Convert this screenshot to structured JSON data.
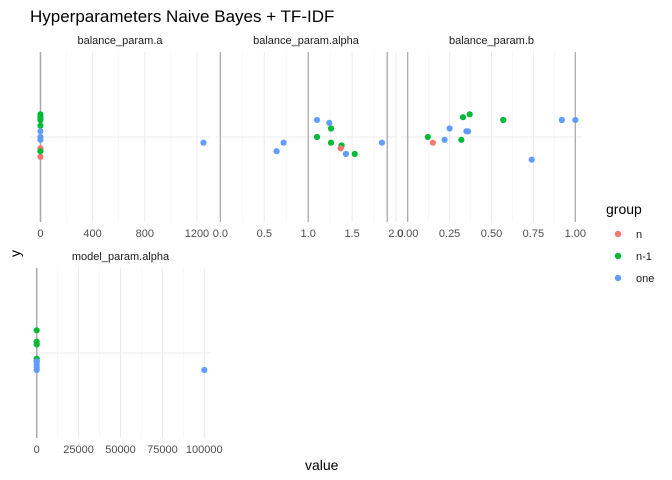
{
  "chart_data": {
    "type": "scatter",
    "title": "Hyperparameters Naive Bayes + TF-IDF",
    "xlabel": "value",
    "ylabel": "y",
    "grid": true,
    "legend": {
      "title": "group",
      "placement": "right",
      "entries": [
        {
          "name": "n",
          "color": "#F8766D"
        },
        {
          "name": "n-1",
          "color": "#00BA38"
        },
        {
          "name": "one",
          "color": "#619CFF"
        }
      ]
    },
    "y_range": [
      -0.3,
      0.3
    ],
    "facets": [
      {
        "name": "balance_param.a",
        "xlim": [
          -80,
          1300
        ],
        "x_ticks": [
          0,
          400,
          800,
          1200
        ],
        "x_tick_labels": [
          "0",
          "400",
          "800",
          "1200"
        ],
        "points": [
          {
            "group": "n",
            "x": 0,
            "y": -0.07
          },
          {
            "group": "n",
            "x": 0,
            "y": -0.04
          },
          {
            "group": "n-1",
            "x": 0,
            "y": 0.08
          },
          {
            "group": "n-1",
            "x": 0,
            "y": 0.07
          },
          {
            "group": "n-1",
            "x": 0,
            "y": 0.06
          },
          {
            "group": "n-1",
            "x": 0,
            "y": 0.04
          },
          {
            "group": "n-1",
            "x": 0,
            "y": -0.05
          },
          {
            "group": "one",
            "x": 0,
            "y": 0.02
          },
          {
            "group": "one",
            "x": 0,
            "y": 0.0
          },
          {
            "group": "one",
            "x": 0,
            "y": -0.01
          },
          {
            "group": "one",
            "x": 1250,
            "y": -0.02
          }
        ]
      },
      {
        "name": "balance_param.alpha",
        "xlim": [
          -0.05,
          2.0
        ],
        "x_ticks": [
          0.0,
          0.5,
          1.0,
          1.5,
          2.0
        ],
        "x_tick_labels": [
          "0.0",
          "0.5",
          "1.0",
          "1.5",
          "2.0"
        ],
        "points": [
          {
            "group": "one",
            "x": 0.64,
            "y": -0.05
          },
          {
            "group": "one",
            "x": 0.72,
            "y": -0.02
          },
          {
            "group": "one",
            "x": 1.1,
            "y": 0.06
          },
          {
            "group": "one",
            "x": 1.24,
            "y": 0.05
          },
          {
            "group": "one",
            "x": 1.37,
            "y": -0.04
          },
          {
            "group": "one",
            "x": 1.43,
            "y": -0.06
          },
          {
            "group": "one",
            "x": 1.84,
            "y": -0.02
          },
          {
            "group": "n-1",
            "x": 1.1,
            "y": 0.0
          },
          {
            "group": "n-1",
            "x": 1.26,
            "y": 0.03
          },
          {
            "group": "n-1",
            "x": 1.26,
            "y": -0.02
          },
          {
            "group": "n-1",
            "x": 1.38,
            "y": -0.03
          },
          {
            "group": "n-1",
            "x": 1.53,
            "y": -0.06
          },
          {
            "group": "n",
            "x": 1.37,
            "y": -0.04
          }
        ]
      },
      {
        "name": "balance_param.b",
        "xlim": [
          -0.04,
          1.04
        ],
        "x_ticks": [
          0.0,
          0.25,
          0.5,
          0.75,
          1.0
        ],
        "x_tick_labels": [
          "0.00",
          "0.25",
          "0.50",
          "0.75",
          "1.00"
        ],
        "points": [
          {
            "group": "n",
            "x": 0.15,
            "y": -0.02
          },
          {
            "group": "n-1",
            "x": 0.12,
            "y": 0.0
          },
          {
            "group": "n-1",
            "x": 0.32,
            "y": -0.01
          },
          {
            "group": "n-1",
            "x": 0.33,
            "y": 0.07
          },
          {
            "group": "n-1",
            "x": 0.37,
            "y": 0.08
          },
          {
            "group": "n-1",
            "x": 0.57,
            "y": 0.06
          },
          {
            "group": "one",
            "x": 0.22,
            "y": -0.01
          },
          {
            "group": "one",
            "x": 0.25,
            "y": 0.03
          },
          {
            "group": "one",
            "x": 0.35,
            "y": 0.02
          },
          {
            "group": "one",
            "x": 0.36,
            "y": 0.02
          },
          {
            "group": "one",
            "x": 0.74,
            "y": -0.08
          },
          {
            "group": "one",
            "x": 0.92,
            "y": 0.06
          },
          {
            "group": "one",
            "x": 1.0,
            "y": 0.06
          }
        ]
      },
      {
        "name": "model_param.alpha",
        "xlim": [
          -4000,
          104000
        ],
        "x_ticks": [
          0,
          25000,
          50000,
          75000,
          100000
        ],
        "x_tick_labels": [
          "0",
          "25000",
          "50000",
          "75000",
          "100000"
        ],
        "points": [
          {
            "group": "n-1",
            "x": 0,
            "y": 0.08
          },
          {
            "group": "n-1",
            "x": 0,
            "y": 0.04
          },
          {
            "group": "n-1",
            "x": 0,
            "y": 0.03
          },
          {
            "group": "n-1",
            "x": 0,
            "y": -0.02
          },
          {
            "group": "n-1",
            "x": 0,
            "y": -0.03
          },
          {
            "group": "one",
            "x": 0,
            "y": -0.03
          },
          {
            "group": "one",
            "x": 0,
            "y": -0.04
          },
          {
            "group": "one",
            "x": 0,
            "y": -0.05
          },
          {
            "group": "one",
            "x": 0,
            "y": -0.06
          },
          {
            "group": "one",
            "x": 100000,
            "y": -0.06
          }
        ]
      }
    ]
  }
}
